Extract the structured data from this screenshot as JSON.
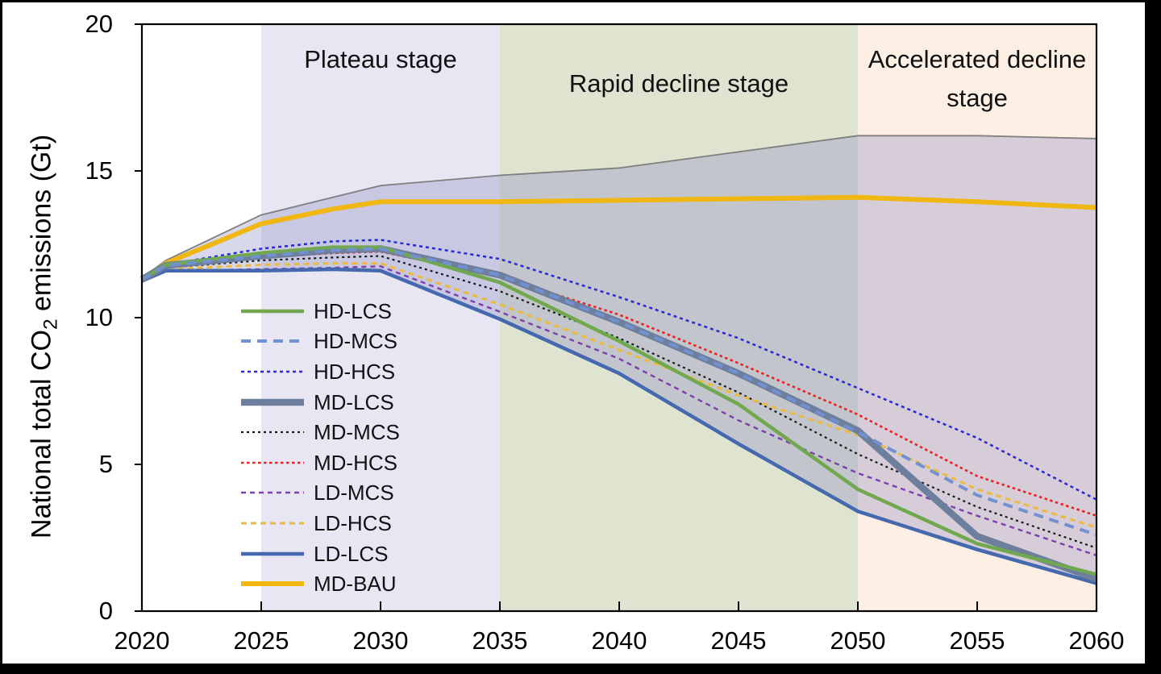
{
  "figure": {
    "frame_color": "#000000",
    "background": "#ffffff"
  },
  "chart_data": {
    "type": "line",
    "title": "",
    "xlabel": "",
    "ylabel_parts": {
      "pre": "National total CO",
      "sub": "2",
      "post": " emissions (Gt)"
    },
    "xlim": [
      2020,
      2060
    ],
    "ylim": [
      0,
      20
    ],
    "x_ticks": [
      2020,
      2025,
      2030,
      2035,
      2040,
      2045,
      2050,
      2055,
      2060
    ],
    "y_ticks": [
      0,
      5,
      10,
      15,
      20
    ],
    "grid": false,
    "legend_position": "inside-left-middle",
    "x": [
      2020,
      2021,
      2025,
      2028,
      2030,
      2035,
      2040,
      2045,
      2050,
      2055,
      2060
    ],
    "stages": [
      {
        "label": "Plateau stage",
        "from": 2025,
        "to": 2035,
        "color": "#E9E6F3"
      },
      {
        "label": "Rapid decline stage",
        "from": 2035,
        "to": 2050,
        "color": "#DEE4D0"
      },
      {
        "label": "Accelerated decline stage",
        "from": 2050,
        "to": 2060,
        "color": "#FDEFE3"
      }
    ],
    "envelope": {
      "fill": "rgba(143,143,197,0.35)",
      "top_color": "#7F7F7F",
      "top_width": 1.8,
      "top_values": [
        11.35,
        11.95,
        13.5,
        14.1,
        14.5,
        14.85,
        15.1,
        15.65,
        16.2,
        16.2,
        16.1
      ],
      "bottom_series": "LD-LCS"
    },
    "series": [
      {
        "name": "HD-LCS",
        "color": "#71A84F",
        "width": 4.5,
        "dash": "",
        "values": [
          11.3,
          11.8,
          12.2,
          12.4,
          12.4,
          11.2,
          9.2,
          7.05,
          4.15,
          2.3,
          1.25
        ]
      },
      {
        "name": "HD-MCS",
        "color": "#7191D1",
        "width": 4.0,
        "dash": "12,8",
        "values": [
          11.3,
          11.78,
          12.1,
          12.3,
          12.35,
          11.45,
          9.85,
          8.1,
          6.1,
          3.95,
          2.6
        ]
      },
      {
        "name": "HD-HCS",
        "color": "#2929D6",
        "width": 2.5,
        "dash": "4,4",
        "values": [
          11.3,
          11.8,
          12.35,
          12.6,
          12.65,
          12.0,
          10.7,
          9.3,
          7.6,
          5.9,
          3.8
        ]
      },
      {
        "name": "MD-LCS",
        "color": "#6E7F9E",
        "width": 8.5,
        "dash": "",
        "values": [
          11.3,
          11.78,
          12.1,
          12.3,
          12.35,
          11.45,
          9.85,
          8.1,
          6.15,
          2.55,
          1.1
        ]
      },
      {
        "name": "MD-MCS",
        "color": "#1A1A1A",
        "width": 2.2,
        "dash": "3,4",
        "values": [
          11.3,
          11.7,
          11.95,
          12.05,
          12.1,
          10.9,
          9.3,
          7.45,
          5.35,
          3.55,
          2.15
        ]
      },
      {
        "name": "MD-HCS",
        "color": "#EC2121",
        "width": 2.6,
        "dash": "3.5,3.5",
        "values": [
          11.3,
          11.75,
          12.05,
          12.2,
          12.25,
          11.4,
          10.1,
          8.45,
          6.7,
          4.6,
          3.25
        ]
      },
      {
        "name": "LD-MCS",
        "color": "#7D3FAE",
        "width": 2.4,
        "dash": "6,5",
        "values": [
          11.25,
          11.6,
          11.65,
          11.7,
          11.75,
          10.2,
          8.6,
          6.5,
          4.7,
          3.25,
          1.9
        ]
      },
      {
        "name": "LD-HCS",
        "color": "#EDBA41",
        "width": 3.0,
        "dash": "7,5",
        "values": [
          11.25,
          11.65,
          11.8,
          11.85,
          11.85,
          10.45,
          8.9,
          7.35,
          6.0,
          4.15,
          2.85
        ]
      },
      {
        "name": "LD-LCS",
        "color": "#4569AE",
        "width": 4.5,
        "dash": "",
        "values": [
          11.25,
          11.6,
          11.6,
          11.65,
          11.6,
          9.95,
          8.1,
          5.7,
          3.4,
          2.1,
          0.95
        ]
      },
      {
        "name": "MD-BAU",
        "color": "#F0B611",
        "width": 6.0,
        "dash": "",
        "values": [
          11.3,
          11.85,
          13.2,
          13.7,
          13.95,
          13.95,
          14.0,
          14.05,
          14.1,
          13.95,
          13.75
        ]
      }
    ],
    "legend": [
      "HD-LCS",
      "HD-MCS",
      "HD-HCS",
      "MD-LCS",
      "MD-MCS",
      "MD-HCS",
      "LD-MCS",
      "LD-HCS",
      "LD-LCS",
      "MD-BAU"
    ],
    "draw_order": [
      "MD-BAU",
      "HD-HCS",
      "MD-HCS",
      "MD-MCS",
      "LD-HCS",
      "LD-MCS",
      "LD-LCS",
      "MD-LCS",
      "HD-LCS",
      "HD-MCS"
    ]
  }
}
